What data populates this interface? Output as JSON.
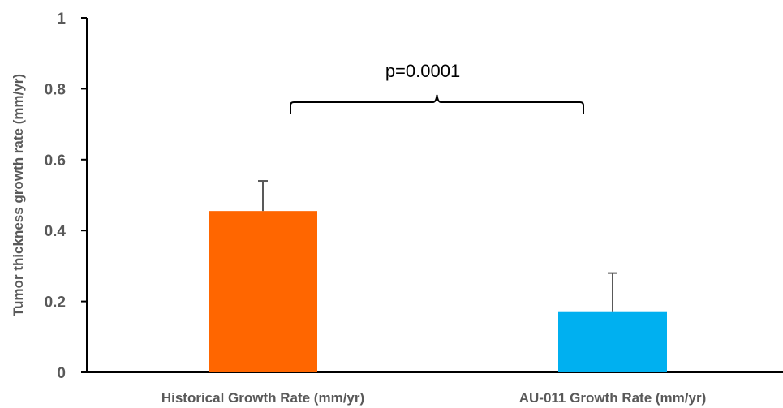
{
  "chart_data": {
    "type": "bar",
    "categories": [
      "Historical Growth Rate (mm/yr)",
      "AU-011 Growth Rate (mm/yr)"
    ],
    "values": [
      0.455,
      0.17
    ],
    "error_bars": [
      0.085,
      0.11
    ],
    "colors": [
      "#ff6600",
      "#00b0f0"
    ],
    "title": "",
    "xlabel": "",
    "ylabel": "Tumor thickness growth rate (mm/yr)",
    "ylim": [
      0,
      1
    ],
    "yticks": [
      0,
      0.2,
      0.4,
      0.6,
      0.8,
      1
    ],
    "ytick_labels": [
      "0",
      "0.2",
      "0.4",
      "0.6",
      "0.8",
      "1"
    ],
    "grid": false,
    "legend": "none",
    "annotations": [
      {
        "text": "p=0.0001",
        "type": "bracket",
        "spans": [
          "Historical Growth Rate (mm/yr)",
          "AU-011 Growth Rate (mm/yr)"
        ]
      }
    ]
  }
}
